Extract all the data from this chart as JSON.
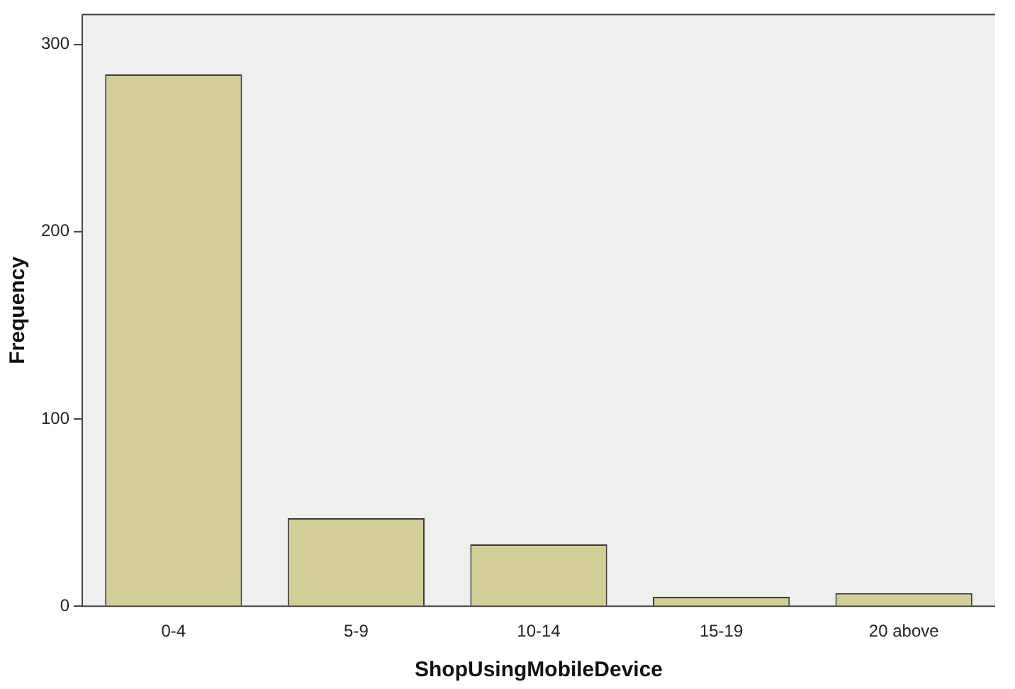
{
  "chart_data": {
    "type": "bar",
    "xlabel": "ShopUsingMobileDevice",
    "ylabel": "Frequency",
    "categories": [
      "0-4",
      "5-9",
      "10-14",
      "15-19",
      "20 above"
    ],
    "values": [
      284,
      47,
      33,
      5,
      7
    ],
    "color": "#d3ce97",
    "ylim": [
      0,
      316
    ],
    "yticks": [
      0,
      100,
      200,
      300
    ],
    "grid": false,
    "legend": false
  }
}
